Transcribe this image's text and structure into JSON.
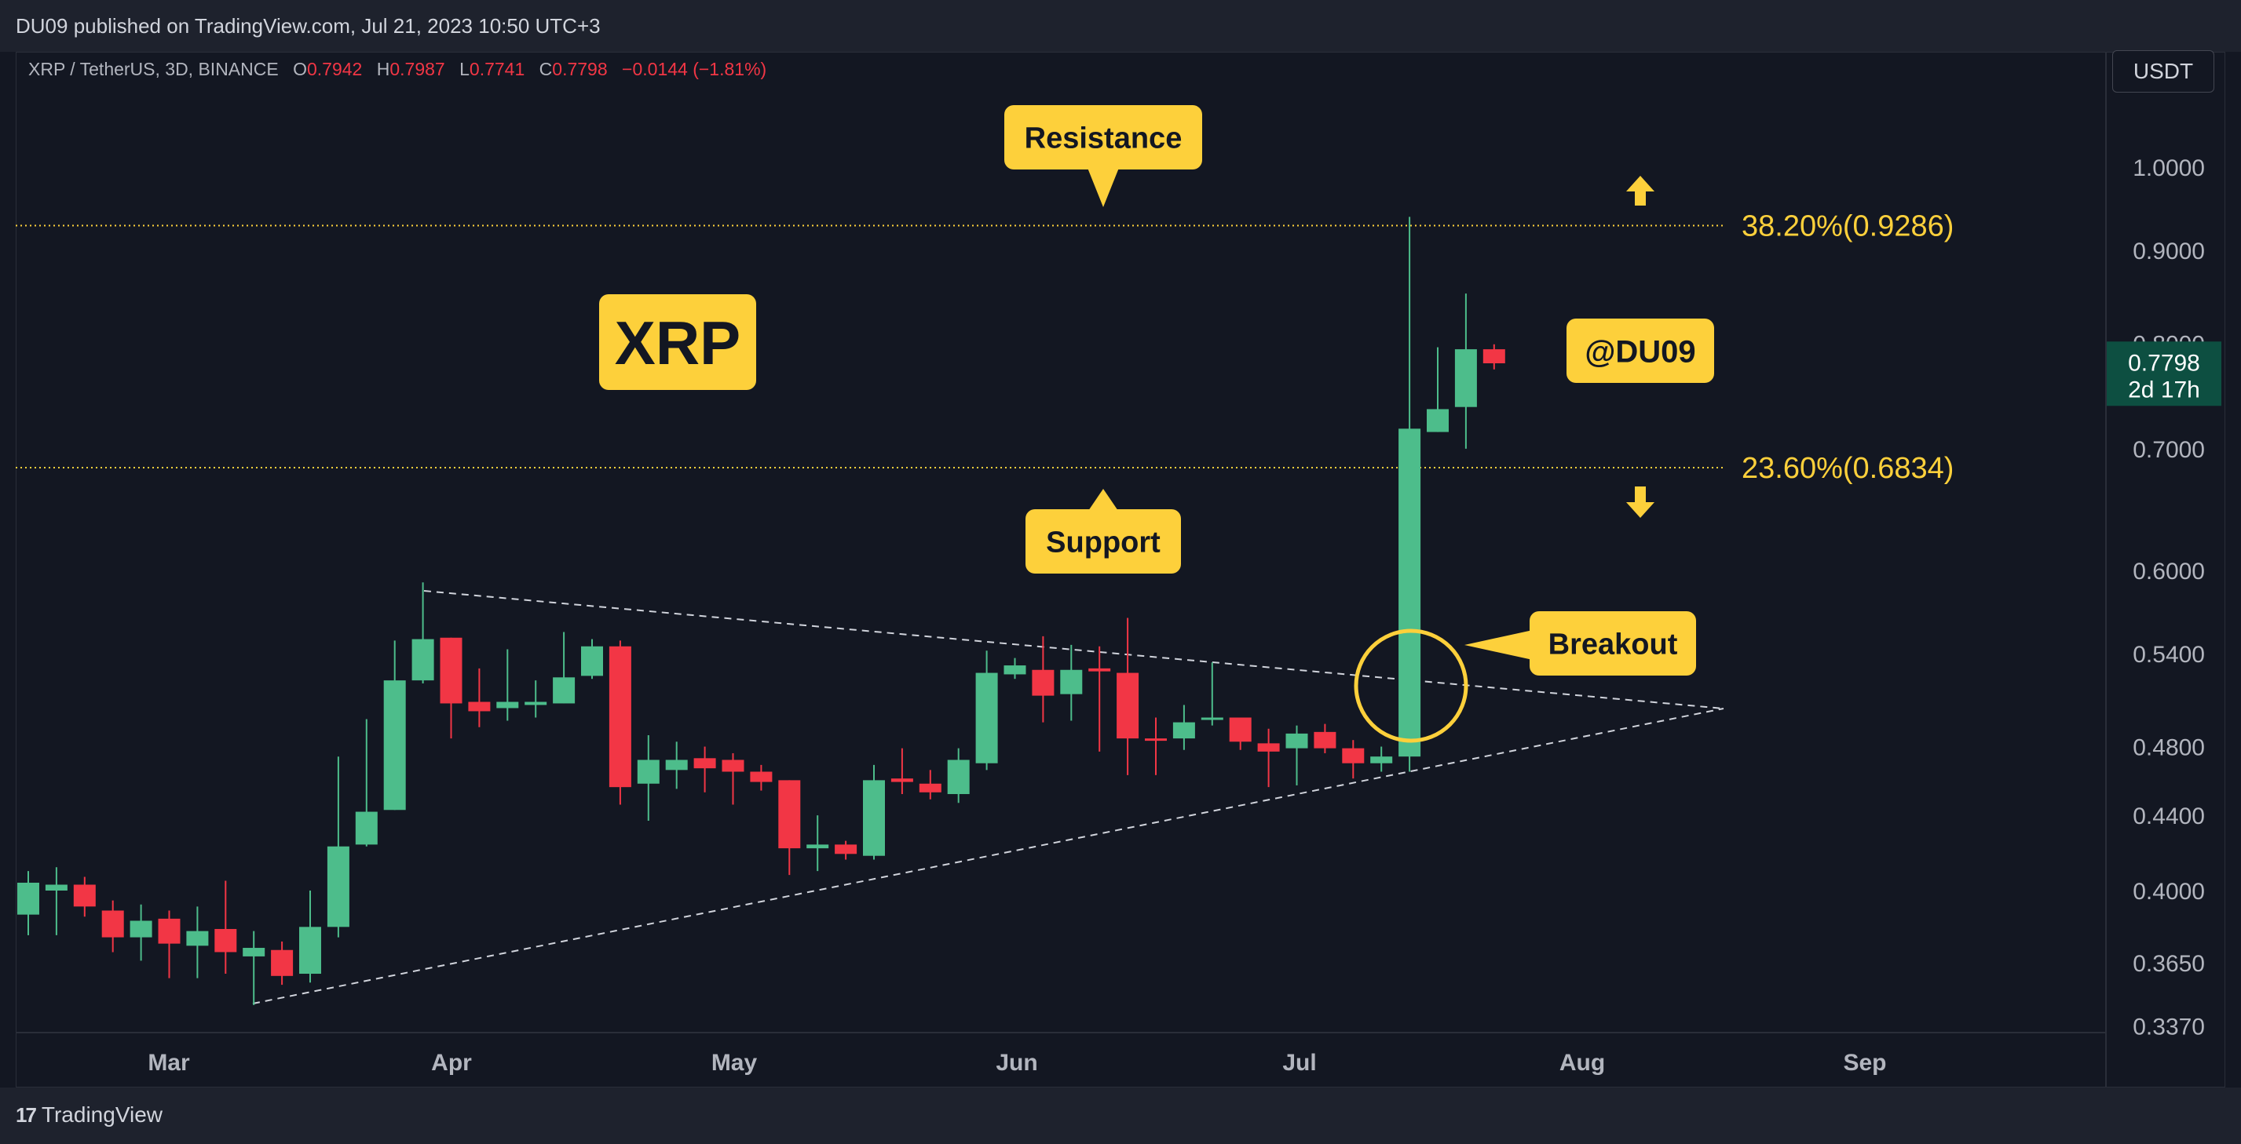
{
  "header": {
    "published": "DU09 published on TradingView.com, Jul 21, 2023 10:50 UTC+3"
  },
  "legend": {
    "symbol": "XRP / TetherUS, 3D, BINANCE",
    "o_label": "O",
    "o_value": "0.7942",
    "h_label": "H",
    "h_value": "0.7987",
    "l_label": "L",
    "l_value": "0.7741",
    "c_label": "C",
    "c_value": "0.7798",
    "change": "−0.0144 (−1.81%)"
  },
  "currency_button": "USDT",
  "footer": {
    "logo_text": "TradingView"
  },
  "colors": {
    "background": "#131722",
    "up": "#26a69a",
    "up_display": "#4dbd8b",
    "down": "#f23645",
    "annotation": "#fdd03b",
    "annotation_text": "#131722"
  },
  "chart_data": {
    "type": "candlestick",
    "symbol": "XRP / TetherUS",
    "timeframe": "3D",
    "exchange": "BINANCE",
    "y_scale": "log",
    "ylim": [
      0.337,
      1.07
    ],
    "x_ticks": [
      "Mar",
      "Apr",
      "May",
      "Jun",
      "Jul",
      "Aug",
      "Sep"
    ],
    "y_ticks": [
      "1.0000",
      "0.9000",
      "0.8000",
      "0.7000",
      "0.6000",
      "0.5400",
      "0.4800",
      "0.4400",
      "0.4000",
      "0.3650",
      "0.3370"
    ],
    "y_tick_values": [
      1.0,
      0.9,
      0.8,
      0.7,
      0.6,
      0.54,
      0.48,
      0.44,
      0.4,
      0.365,
      0.337
    ],
    "last_price": "0.7798",
    "countdown": "2d 17h",
    "candles": [
      [
        0.388,
        0.404,
        0.41,
        0.378
      ],
      [
        0.4,
        0.403,
        0.412,
        0.378
      ],
      [
        0.403,
        0.392,
        0.407,
        0.387
      ],
      [
        0.39,
        0.377,
        0.395,
        0.37
      ],
      [
        0.377,
        0.385,
        0.393,
        0.366
      ],
      [
        0.386,
        0.374,
        0.39,
        0.358
      ],
      [
        0.373,
        0.38,
        0.392,
        0.358
      ],
      [
        0.381,
        0.37,
        0.405,
        0.36
      ],
      [
        0.368,
        0.372,
        0.38,
        0.346
      ],
      [
        0.371,
        0.359,
        0.375,
        0.355
      ],
      [
        0.36,
        0.382,
        0.4,
        0.356
      ],
      [
        0.382,
        0.423,
        0.474,
        0.377
      ],
      [
        0.424,
        0.442,
        0.497,
        0.423
      ],
      [
        0.443,
        0.522,
        0.549,
        0.443
      ],
      [
        0.522,
        0.55,
        0.591,
        0.52
      ],
      [
        0.551,
        0.507,
        0.551,
        0.485
      ],
      [
        0.508,
        0.502,
        0.53,
        0.492
      ],
      [
        0.504,
        0.508,
        0.543,
        0.496
      ],
      [
        0.506,
        0.508,
        0.522,
        0.498
      ],
      [
        0.507,
        0.524,
        0.555,
        0.507
      ],
      [
        0.525,
        0.545,
        0.55,
        0.523
      ],
      [
        0.545,
        0.456,
        0.549,
        0.446
      ],
      [
        0.458,
        0.472,
        0.487,
        0.437
      ],
      [
        0.466,
        0.472,
        0.483,
        0.455
      ],
      [
        0.473,
        0.467,
        0.48,
        0.453
      ],
      [
        0.472,
        0.465,
        0.476,
        0.446
      ],
      [
        0.465,
        0.459,
        0.469,
        0.454
      ],
      [
        0.46,
        0.422,
        0.46,
        0.408
      ],
      [
        0.422,
        0.424,
        0.44,
        0.41
      ],
      [
        0.424,
        0.419,
        0.426,
        0.416
      ],
      [
        0.418,
        0.46,
        0.469,
        0.416
      ],
      [
        0.461,
        0.459,
        0.479,
        0.452
      ],
      [
        0.458,
        0.453,
        0.466,
        0.449
      ],
      [
        0.452,
        0.472,
        0.479,
        0.447
      ],
      [
        0.47,
        0.527,
        0.542,
        0.466
      ],
      [
        0.526,
        0.532,
        0.537,
        0.523
      ],
      [
        0.529,
        0.512,
        0.552,
        0.495
      ],
      [
        0.513,
        0.529,
        0.546,
        0.496
      ],
      [
        0.53,
        0.528,
        0.545,
        0.477
      ],
      [
        0.527,
        0.485,
        0.565,
        0.463
      ],
      [
        0.485,
        0.484,
        0.498,
        0.463
      ],
      [
        0.485,
        0.495,
        0.506,
        0.478
      ],
      [
        0.497,
        0.498,
        0.534,
        0.493
      ],
      [
        0.498,
        0.483,
        0.498,
        0.478
      ],
      [
        0.482,
        0.477,
        0.491,
        0.456
      ],
      [
        0.479,
        0.488,
        0.493,
        0.457
      ],
      [
        0.489,
        0.479,
        0.494,
        0.476
      ],
      [
        0.479,
        0.47,
        0.484,
        0.461
      ],
      [
        0.47,
        0.474,
        0.48,
        0.465
      ],
      [
        0.474,
        0.718,
        0.939,
        0.465
      ],
      [
        0.715,
        0.736,
        0.796,
        0.715
      ],
      [
        0.738,
        0.794,
        0.852,
        0.7
      ],
      [
        0.794,
        0.78,
        0.799,
        0.774
      ]
    ],
    "fib_levels": [
      {
        "label": "38.20%(0.9286)",
        "value": 0.9286
      },
      {
        "label": "23.60%(0.6834)",
        "value": 0.6834
      }
    ],
    "annotations": {
      "title": "XRP",
      "watermark": "@DU09",
      "resistance": "Resistance",
      "support": "Support",
      "breakout": "Breakout"
    }
  }
}
